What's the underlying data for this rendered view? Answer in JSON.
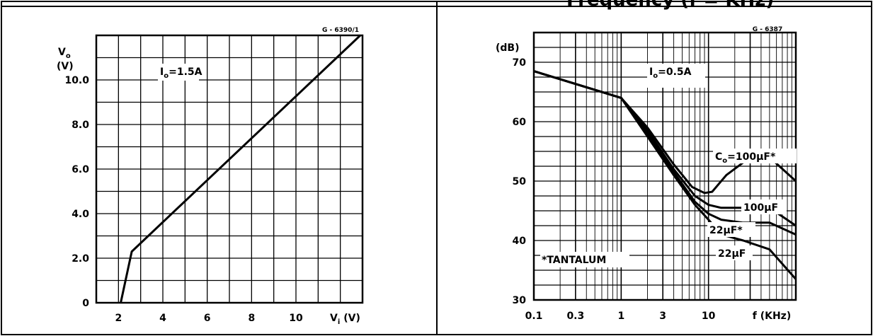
{
  "header": {
    "title": "Frequency (f = KHz)"
  },
  "chart_data": [
    {
      "type": "line",
      "code": "G - 6390/1",
      "ylabel_main": "V",
      "ylabel_sub": "o",
      "ylabel_unit": "(V)",
      "xlabel_main": "V",
      "xlabel_sub": "i",
      "xlabel_unit": "(V)",
      "annotation": {
        "main": "I",
        "sub": "o",
        "text": "=1.5A"
      },
      "xlim": [
        1,
        13
      ],
      "ylim": [
        0,
        12
      ],
      "x_ticks": [
        "2",
        "4",
        "6",
        "8",
        "10"
      ],
      "y_ticks": [
        "0",
        "2.0",
        "4.0",
        "6.0",
        "8.0",
        "10.0"
      ],
      "series": [
        {
          "x": [
            2.1,
            2.6,
            12.9
          ],
          "y": [
            0,
            2.3,
            12
          ]
        }
      ]
    },
    {
      "type": "line",
      "code": "G - 6387",
      "ylabel": "(dB)",
      "xlabel": "f (KHz)",
      "x_scale": "log",
      "xlim": [
        0.1,
        100
      ],
      "ylim": [
        30,
        75
      ],
      "x_ticks": [
        "0.1",
        "0.3",
        "1",
        "3",
        "10"
      ],
      "y_ticks": [
        "30",
        "40",
        "50",
        "60",
        "70"
      ],
      "annotation": {
        "main": "I",
        "sub": "o",
        "text": "=0.5A"
      },
      "note": "*TANTALUM",
      "series": [
        {
          "name": "C",
          "name_sub": "o",
          "name_rest": "=100µF*",
          "x": [
            0.1,
            1,
            2,
            4,
            6.5,
            9,
            11,
            16,
            30,
            50,
            100
          ],
          "y": [
            68.5,
            64,
            59,
            52.8,
            49,
            48,
            48.2,
            51,
            54,
            54,
            50
          ]
        },
        {
          "name": "100µF",
          "x": [
            0.1,
            1,
            2,
            4,
            7,
            10,
            14,
            25,
            50,
            100
          ],
          "y": [
            68.5,
            64,
            58.5,
            52,
            47.5,
            46,
            45.5,
            45.5,
            45.5,
            42.5
          ]
        },
        {
          "name": "22µF*",
          "x": [
            0.1,
            1,
            2,
            4,
            7,
            10,
            14,
            25,
            50,
            100
          ],
          "y": [
            68.5,
            64,
            58,
            51.5,
            46.5,
            44.5,
            43.5,
            43,
            43,
            41
          ]
        },
        {
          "name": "22µF",
          "x": [
            0.1,
            1,
            2,
            4,
            7,
            10,
            14,
            25,
            50,
            100
          ],
          "y": [
            68.5,
            64,
            57.5,
            51,
            46,
            43.5,
            41,
            40,
            38.5,
            33.5
          ]
        }
      ]
    }
  ]
}
